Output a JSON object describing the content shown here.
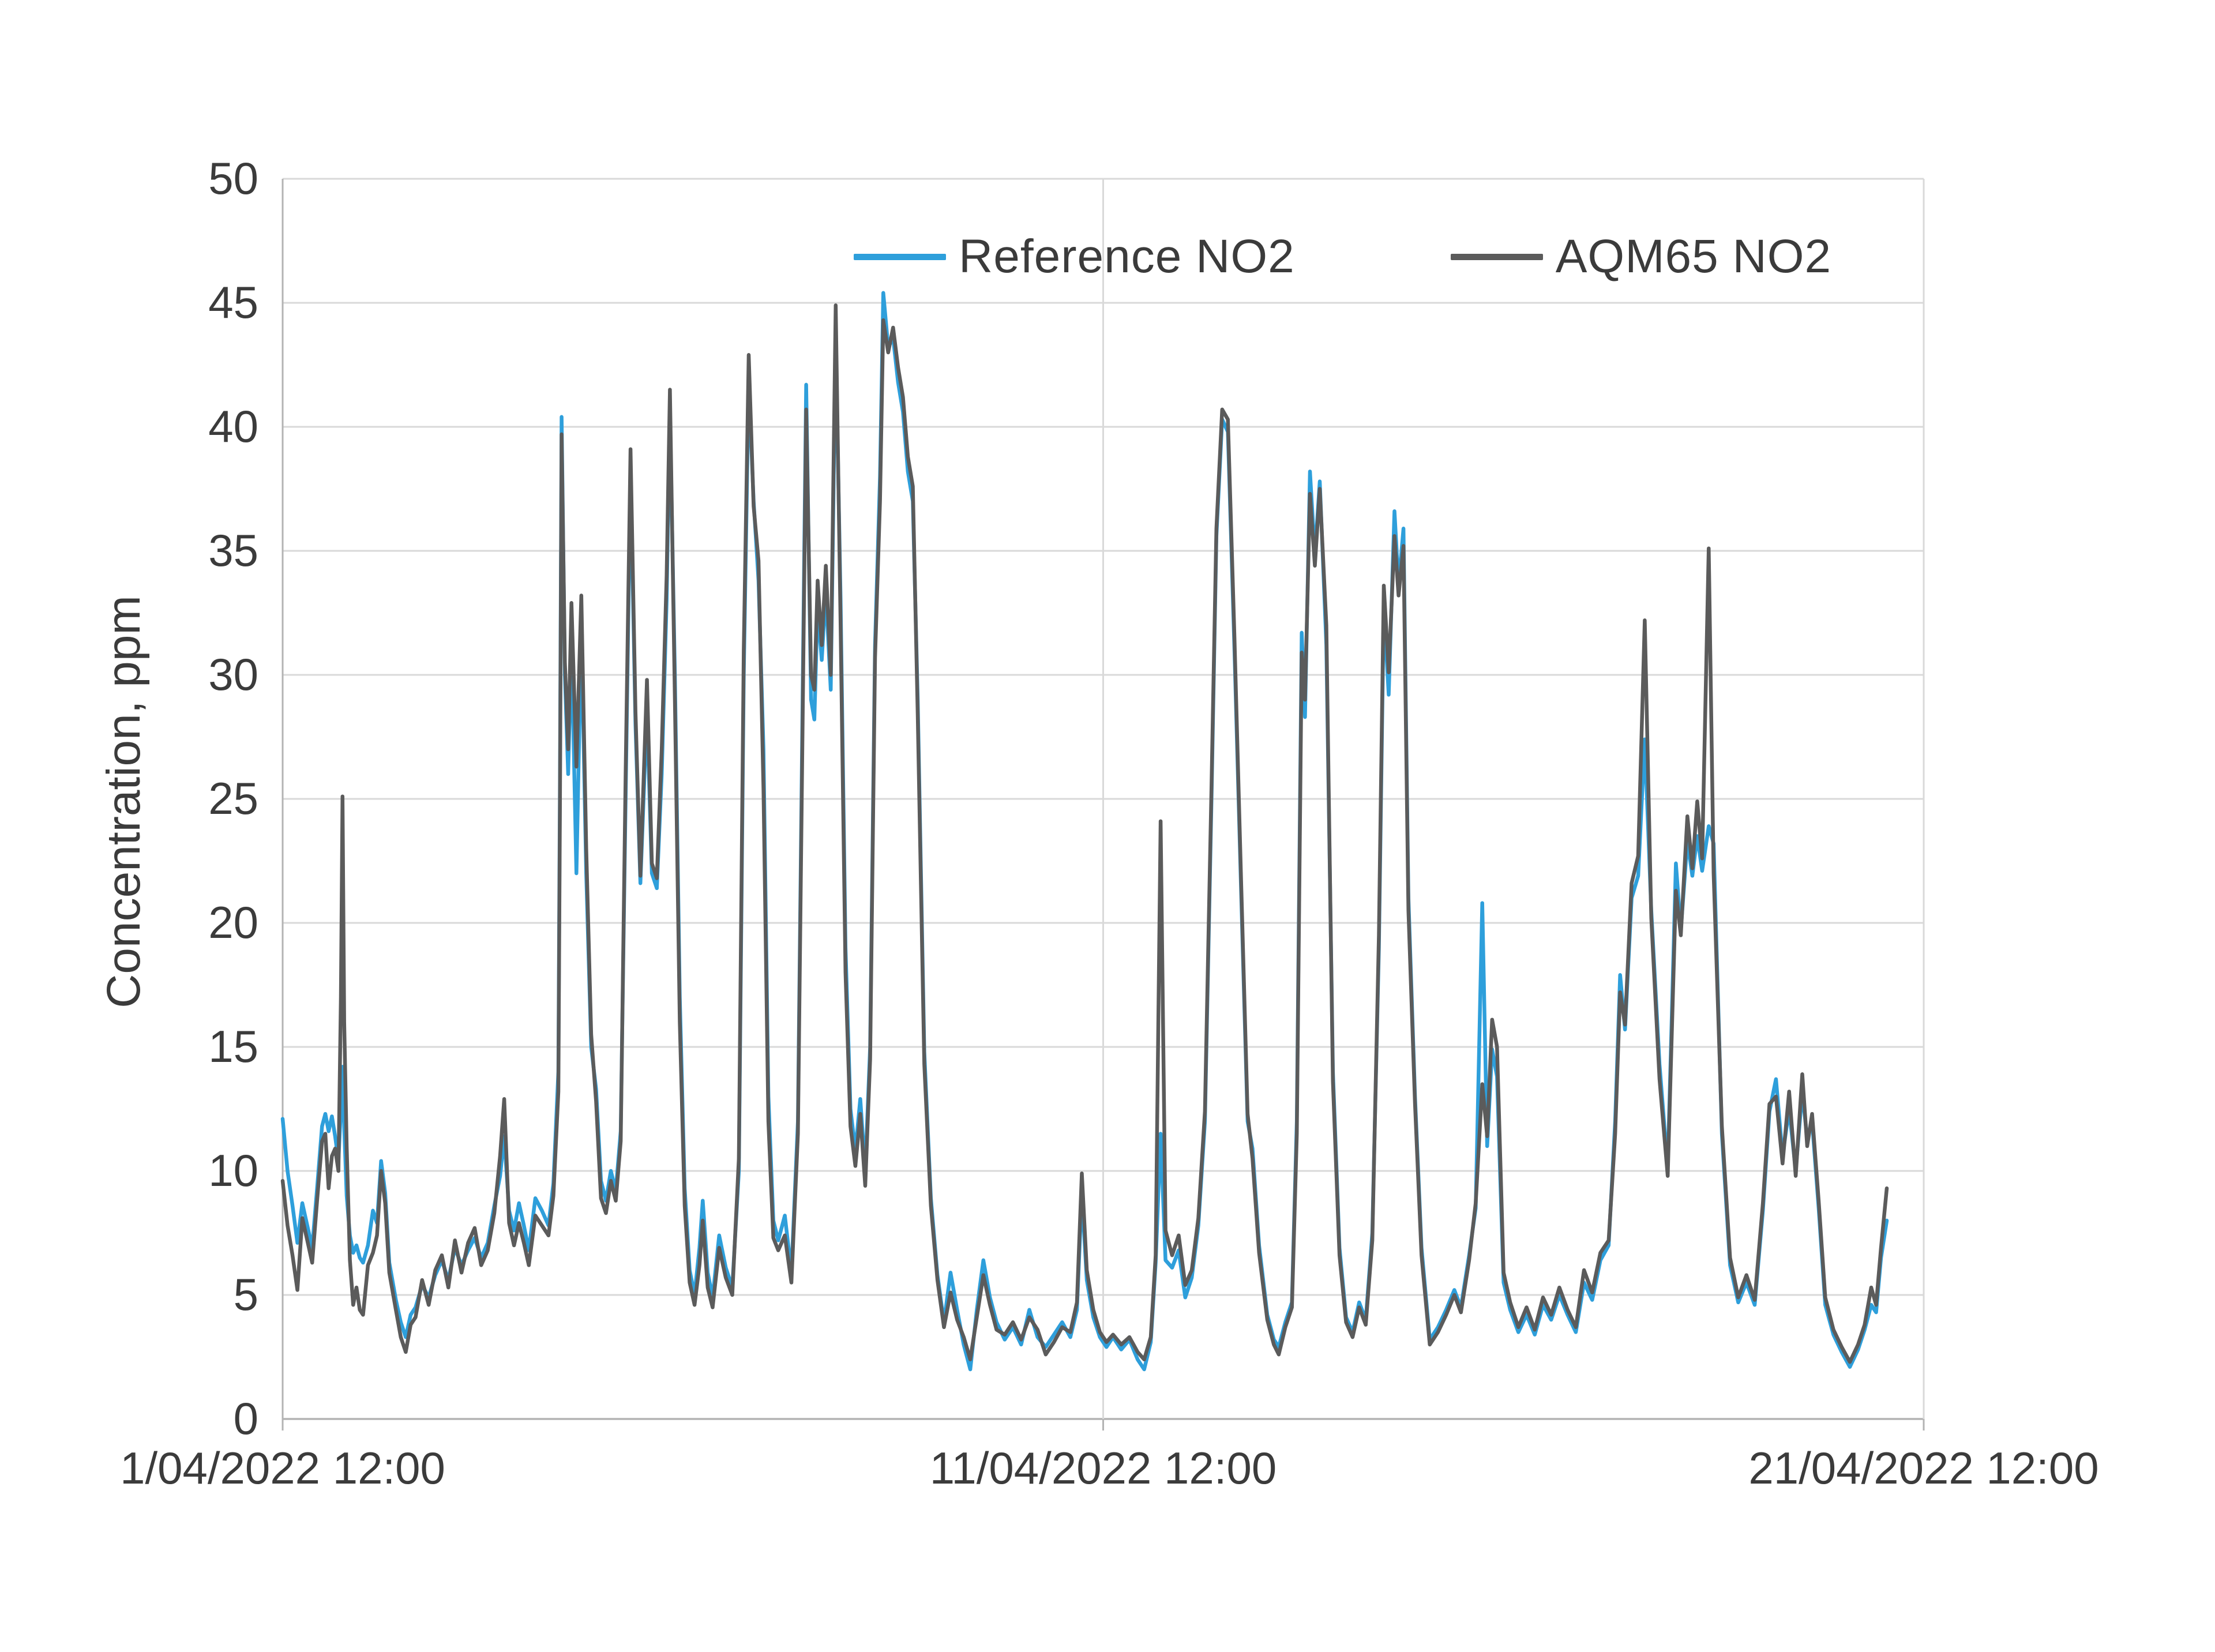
{
  "chart_data": {
    "type": "line",
    "title": "",
    "xlabel": "",
    "ylabel": "Concentration, ppm",
    "ylim": [
      0,
      50
    ],
    "xlim_days": [
      0,
      20
    ],
    "grid": "horizontal gridlines every 5 ppm; vertical lines at axis start, middle, end",
    "legend_position": "top-center-inside",
    "grid_color": "#D9D9D9",
    "axis_color": "#B3B3B3",
    "text_color": "#3B3B3B",
    "plot_bg": "#FFFFFF",
    "y_ticks": [
      0,
      5,
      10,
      15,
      20,
      25,
      30,
      35,
      40,
      45,
      50
    ],
    "x_ticks": [
      {
        "day": 0,
        "label": "1/04/2022 12:00"
      },
      {
        "day": 10,
        "label": "11/04/2022 12:00"
      },
      {
        "day": 20,
        "label": "21/04/2022 12:00"
      }
    ],
    "x_days": [
      0.0,
      0.06,
      0.12,
      0.18,
      0.24,
      0.3,
      0.36,
      0.42,
      0.48,
      0.52,
      0.56,
      0.6,
      0.64,
      0.68,
      0.71,
      0.73,
      0.75,
      0.78,
      0.82,
      0.86,
      0.9,
      0.94,
      0.98,
      1.04,
      1.1,
      1.15,
      1.2,
      1.25,
      1.3,
      1.38,
      1.44,
      1.5,
      1.56,
      1.62,
      1.7,
      1.78,
      1.86,
      1.94,
      2.02,
      2.1,
      2.18,
      2.26,
      2.34,
      2.42,
      2.5,
      2.58,
      2.65,
      2.7,
      2.76,
      2.82,
      2.88,
      2.94,
      3.0,
      3.08,
      3.16,
      3.24,
      3.3,
      3.36,
      3.38,
      3.4,
      3.44,
      3.48,
      3.52,
      3.58,
      3.64,
      3.7,
      3.76,
      3.82,
      3.88,
      3.94,
      4.0,
      4.06,
      4.12,
      4.18,
      4.24,
      4.3,
      4.36,
      4.44,
      4.5,
      4.56,
      4.62,
      4.68,
      4.72,
      4.78,
      4.84,
      4.9,
      4.96,
      5.02,
      5.08,
      5.12,
      5.18,
      5.24,
      5.32,
      5.4,
      5.48,
      5.56,
      5.62,
      5.68,
      5.74,
      5.8,
      5.86,
      5.92,
      5.98,
      6.04,
      6.12,
      6.2,
      6.28,
      6.34,
      6.38,
      6.44,
      6.48,
      6.52,
      6.57,
      6.62,
      6.68,
      6.74,
      6.8,
      6.86,
      6.92,
      6.98,
      7.04,
      7.1,
      7.16,
      7.22,
      7.28,
      7.32,
      7.38,
      7.44,
      7.5,
      7.56,
      7.62,
      7.68,
      7.74,
      7.82,
      7.9,
      7.98,
      8.06,
      8.14,
      8.22,
      8.3,
      8.38,
      8.46,
      8.54,
      8.62,
      8.7,
      8.8,
      8.9,
      9.0,
      9.1,
      9.2,
      9.3,
      9.4,
      9.5,
      9.6,
      9.68,
      9.74,
      9.8,
      9.88,
      9.96,
      10.04,
      10.12,
      10.22,
      10.32,
      10.42,
      10.5,
      10.58,
      10.64,
      10.7,
      10.76,
      10.84,
      10.92,
      11.0,
      11.08,
      11.16,
      11.24,
      11.32,
      11.38,
      11.45,
      11.52,
      11.6,
      11.68,
      11.76,
      11.82,
      11.9,
      12.0,
      12.08,
      12.14,
      12.22,
      12.3,
      12.36,
      12.42,
      12.46,
      12.52,
      12.58,
      12.64,
      12.72,
      12.8,
      12.88,
      12.96,
      13.04,
      13.12,
      13.2,
      13.28,
      13.36,
      13.42,
      13.48,
      13.55,
      13.6,
      13.66,
      13.72,
      13.8,
      13.88,
      13.98,
      14.08,
      14.18,
      14.28,
      14.36,
      14.46,
      14.54,
      14.62,
      14.68,
      14.74,
      14.8,
      14.88,
      14.96,
      15.06,
      15.16,
      15.26,
      15.36,
      15.46,
      15.56,
      15.66,
      15.76,
      15.86,
      15.96,
      16.06,
      16.16,
      16.24,
      16.3,
      16.36,
      16.44,
      16.52,
      16.6,
      16.68,
      16.78,
      16.88,
      16.98,
      17.04,
      17.12,
      17.18,
      17.24,
      17.3,
      17.38,
      17.44,
      17.54,
      17.64,
      17.74,
      17.84,
      17.94,
      18.04,
      18.12,
      18.2,
      18.28,
      18.36,
      18.44,
      18.52,
      18.58,
      18.64,
      18.72,
      18.8,
      18.9,
      19.0,
      19.1,
      19.2,
      19.28,
      19.36,
      19.42,
      19.48,
      19.55
    ],
    "series": [
      {
        "name": "Reference NO2",
        "color": "#2E9FDB",
        "values": [
          12.1,
          10.0,
          8.6,
          7.1,
          8.7,
          7.8,
          6.9,
          9.3,
          11.8,
          12.3,
          11.6,
          12.2,
          11.4,
          10.4,
          12.5,
          14.2,
          11.8,
          9.0,
          7.4,
          6.7,
          7.0,
          6.5,
          6.3,
          7.0,
          8.4,
          7.9,
          10.4,
          9.1,
          6.3,
          4.8,
          3.9,
          3.3,
          4.2,
          4.5,
          5.4,
          4.9,
          5.8,
          6.4,
          5.6,
          6.9,
          6.2,
          6.8,
          7.3,
          6.5,
          7.1,
          8.6,
          9.8,
          11.4,
          8.4,
          7.6,
          8.7,
          7.8,
          6.8,
          8.9,
          8.4,
          7.8,
          9.5,
          14.0,
          26.0,
          40.4,
          30.0,
          26.0,
          31.4,
          22.0,
          31.9,
          22.0,
          15.0,
          13.3,
          9.6,
          8.8,
          10.0,
          9.2,
          11.6,
          25.0,
          38.3,
          28.0,
          21.6,
          28.6,
          22.0,
          21.4,
          26.0,
          33.0,
          40.6,
          30.0,
          17.0,
          9.3,
          6.0,
          5.0,
          6.9,
          8.8,
          5.9,
          4.9,
          7.4,
          6.1,
          5.3,
          10.0,
          30.0,
          41.8,
          37.0,
          33.8,
          27.0,
          13.0,
          8.0,
          7.2,
          8.2,
          5.9,
          12.0,
          30.0,
          41.7,
          29.0,
          28.2,
          32.8,
          30.6,
          33.4,
          29.4,
          43.6,
          33.0,
          19.0,
          12.5,
          10.8,
          12.9,
          10.0,
          15.0,
          31.2,
          38.0,
          45.4,
          43.2,
          43.6,
          41.8,
          40.6,
          38.2,
          37.0,
          29.0,
          14.8,
          8.9,
          5.8,
          3.9,
          5.9,
          4.4,
          3.0,
          2.0,
          4.4,
          6.4,
          4.9,
          3.9,
          3.2,
          3.7,
          3.0,
          4.4,
          3.3,
          2.9,
          3.4,
          3.9,
          3.3,
          4.4,
          9.1,
          5.6,
          4.1,
          3.3,
          2.9,
          3.3,
          2.8,
          3.2,
          2.4,
          2.0,
          3.1,
          6.3,
          11.5,
          6.4,
          6.1,
          6.8,
          4.9,
          5.7,
          7.8,
          12.0,
          25.0,
          35.6,
          40.3,
          39.8,
          31.0,
          21.4,
          12.0,
          10.9,
          7.0,
          4.2,
          3.2,
          2.9,
          3.9,
          4.7,
          12.0,
          31.7,
          28.3,
          38.2,
          34.8,
          37.8,
          31.2,
          14.0,
          6.9,
          4.1,
          3.5,
          4.7,
          4.0,
          7.5,
          19.0,
          32.8,
          29.2,
          36.6,
          33.6,
          35.9,
          21.0,
          13.0,
          6.9,
          3.2,
          3.7,
          4.4,
          5.2,
          4.5,
          6.6,
          8.5,
          20.8,
          11.0,
          14.9,
          13.8,
          5.5,
          4.4,
          3.5,
          4.2,
          3.4,
          4.6,
          4.0,
          5.0,
          4.2,
          3.5,
          5.5,
          4.8,
          6.4,
          7.0,
          12.0,
          17.9,
          15.7,
          21.0,
          21.9,
          27.4,
          20.5,
          14.3,
          10.1,
          22.4,
          19.7,
          23.3,
          21.9,
          23.5,
          22.1,
          23.9,
          23.2,
          11.5,
          6.2,
          4.7,
          5.5,
          4.6,
          8.4,
          12.4,
          13.7,
          10.6,
          12.5,
          10.0,
          13.2,
          11.3,
          12.0,
          8.5,
          4.6,
          3.4,
          2.7,
          2.1,
          2.8,
          3.6,
          4.6,
          4.3,
          6.5,
          8.0
        ]
      },
      {
        "name": "AQM65 NO2",
        "color": "#5B5B5B",
        "values": [
          9.6,
          7.8,
          6.6,
          5.2,
          8.1,
          7.2,
          6.3,
          8.8,
          11.2,
          11.5,
          9.3,
          10.6,
          10.9,
          10.0,
          17.0,
          25.1,
          16.0,
          11.0,
          6.4,
          4.6,
          5.3,
          4.4,
          4.2,
          6.2,
          6.7,
          7.4,
          10.0,
          8.7,
          5.9,
          4.4,
          3.3,
          2.7,
          3.8,
          4.1,
          5.6,
          4.6,
          6.0,
          6.6,
          5.3,
          7.2,
          5.9,
          7.1,
          7.7,
          6.2,
          6.8,
          8.3,
          10.6,
          12.9,
          7.9,
          7.0,
          7.9,
          7.1,
          6.2,
          8.2,
          7.8,
          7.4,
          9.0,
          13.2,
          25.0,
          39.7,
          30.5,
          27.0,
          32.9,
          26.3,
          33.2,
          23.0,
          15.5,
          12.8,
          8.9,
          8.3,
          9.6,
          8.8,
          11.2,
          26.0,
          39.1,
          28.5,
          21.9,
          29.8,
          22.4,
          21.8,
          27.0,
          34.0,
          41.5,
          29.0,
          16.0,
          8.6,
          5.5,
          4.6,
          6.2,
          8.0,
          5.3,
          4.5,
          6.9,
          5.7,
          5.0,
          10.5,
          31.0,
          42.9,
          36.8,
          34.6,
          25.4,
          12.0,
          7.3,
          6.8,
          7.4,
          5.5,
          11.5,
          29.0,
          40.7,
          30.0,
          29.4,
          33.8,
          31.2,
          34.4,
          30.0,
          44.9,
          32.0,
          18.0,
          11.8,
          10.2,
          12.3,
          9.4,
          14.5,
          30.7,
          37.0,
          44.3,
          43.0,
          44.0,
          42.4,
          41.2,
          38.8,
          37.6,
          28.4,
          14.3,
          8.6,
          5.6,
          3.7,
          5.1,
          4.0,
          3.3,
          2.4,
          4.1,
          5.8,
          4.6,
          3.6,
          3.4,
          3.9,
          3.2,
          4.1,
          3.6,
          2.6,
          3.1,
          3.7,
          3.5,
          4.7,
          9.9,
          6.0,
          4.4,
          3.5,
          3.1,
          3.4,
          3.0,
          3.3,
          2.7,
          2.4,
          3.3,
          6.6,
          24.1,
          7.6,
          6.6,
          7.4,
          5.4,
          6.0,
          8.1,
          12.4,
          25.5,
          35.9,
          40.7,
          40.3,
          31.5,
          21.8,
          12.3,
          10.5,
          6.7,
          4.0,
          3.0,
          2.6,
          3.7,
          4.5,
          11.5,
          30.9,
          29.0,
          37.3,
          34.4,
          37.5,
          32.0,
          13.6,
          6.6,
          3.9,
          3.3,
          4.5,
          3.8,
          7.2,
          19.5,
          33.6,
          30.1,
          35.6,
          33.2,
          35.2,
          20.5,
          12.7,
          6.6,
          3.0,
          3.5,
          4.2,
          5.0,
          4.3,
          6.4,
          8.7,
          13.5,
          11.4,
          16.1,
          15.0,
          5.9,
          4.7,
          3.7,
          4.5,
          3.6,
          4.9,
          4.2,
          5.3,
          4.4,
          3.7,
          6.0,
          5.1,
          6.7,
          7.2,
          11.5,
          17.2,
          15.9,
          21.6,
          22.7,
          32.2,
          20.2,
          13.7,
          9.8,
          21.3,
          19.5,
          24.3,
          22.2,
          24.9,
          22.6,
          35.1,
          22.0,
          11.8,
          6.5,
          4.9,
          5.8,
          4.8,
          8.7,
          12.7,
          13.0,
          10.3,
          13.2,
          9.8,
          13.9,
          11.0,
          12.3,
          8.8,
          4.9,
          3.6,
          2.9,
          2.3,
          3.0,
          3.8,
          5.3,
          4.6,
          6.9,
          9.3
        ]
      }
    ]
  }
}
